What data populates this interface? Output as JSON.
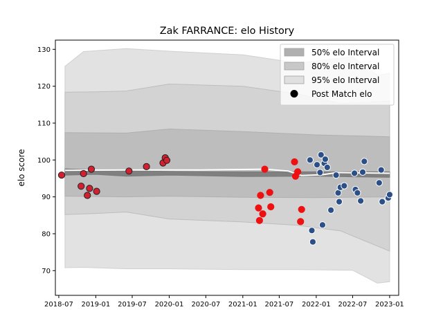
{
  "chart_data": {
    "type": "scatter",
    "title": "Zak FARRANCE: elo History",
    "xlabel": "",
    "ylabel": "elo score",
    "xlim": [
      "2018-06-14",
      "2023-02-15"
    ],
    "ylim": [
      63.3,
      132.5
    ],
    "x_ticks": [
      {
        "date": "2018-07-01",
        "label": "2018-07"
      },
      {
        "date": "2019-01-01",
        "label": "2019-01"
      },
      {
        "date": "2019-07-01",
        "label": "2019-07"
      },
      {
        "date": "2020-01-01",
        "label": "2020-01"
      },
      {
        "date": "2020-07-01",
        "label": "2020-07"
      },
      {
        "date": "2021-01-01",
        "label": "2021-01"
      },
      {
        "date": "2021-07-01",
        "label": "2021-07"
      },
      {
        "date": "2022-01-01",
        "label": "2022-01"
      },
      {
        "date": "2022-07-01",
        "label": "2022-07"
      },
      {
        "date": "2023-01-01",
        "label": "2023-01"
      }
    ],
    "y_ticks": [
      70,
      80,
      90,
      100,
      110,
      120,
      130
    ],
    "legend": {
      "placement": "top-right",
      "entries": [
        {
          "label": "50% elo Interval",
          "kind": "patch",
          "color": "#a9a9a9"
        },
        {
          "label": "80% elo Interval",
          "kind": "patch",
          "color": "#c4c4c4"
        },
        {
          "label": "95% elo Interval",
          "kind": "patch",
          "color": "#dedede"
        },
        {
          "label": "Post Match elo",
          "kind": "marker",
          "color": "#000000"
        }
      ]
    },
    "mean_line": [
      {
        "x": "2018-08-01",
        "y": 97.2
      },
      {
        "x": "2019-06-01",
        "y": 97.3
      },
      {
        "x": "2020-06-01",
        "y": 97.3
      },
      {
        "x": "2021-04-25",
        "y": 97.5
      },
      {
        "x": "2021-08-15",
        "y": 97.0
      },
      {
        "x": "2021-10-20",
        "y": 95.8
      },
      {
        "x": "2022-02-01",
        "y": 96.0
      },
      {
        "x": "2022-04-15",
        "y": 96.6
      },
      {
        "x": "2023-01-01",
        "y": 96.4
      }
    ],
    "interval_50": [
      {
        "x": "2018-08-01",
        "lo": 95.9,
        "hi": 97.6
      },
      {
        "x": "2019-01-01",
        "lo": 96.1,
        "hi": 97.3
      },
      {
        "x": "2019-06-01",
        "lo": 95.6,
        "hi": 97.1
      },
      {
        "x": "2020-01-01",
        "lo": 95.9,
        "hi": 96.9
      },
      {
        "x": "2021-01-01",
        "lo": 95.5,
        "hi": 96.8
      },
      {
        "x": "2022-01-01",
        "lo": 95.6,
        "hi": 96.8
      },
      {
        "x": "2023-01-01",
        "lo": 95.3,
        "hi": 96.8
      }
    ],
    "interval_80": [
      {
        "x": "2018-08-01",
        "lo": 90.2,
        "hi": 107.4
      },
      {
        "x": "2019-06-01",
        "lo": 90.0,
        "hi": 107.3
      },
      {
        "x": "2020-01-01",
        "lo": 90.2,
        "hi": 108.4
      },
      {
        "x": "2021-01-01",
        "lo": 89.9,
        "hi": 107.7
      },
      {
        "x": "2022-01-01",
        "lo": 89.8,
        "hi": 106.8
      },
      {
        "x": "2023-01-01",
        "lo": 90.0,
        "hi": 106.3
      }
    ],
    "interval_95": [
      {
        "x": "2018-08-01",
        "lo": 85.2,
        "hi": 118.4
      },
      {
        "x": "2019-01-01",
        "lo": 85.5,
        "hi": 118.5
      },
      {
        "x": "2019-06-01",
        "lo": 85.9,
        "hi": 118.7
      },
      {
        "x": "2020-01-01",
        "lo": 84.0,
        "hi": 120.6
      },
      {
        "x": "2021-01-01",
        "lo": 83.2,
        "hi": 120.0
      },
      {
        "x": "2021-10-01",
        "lo": 82.3,
        "hi": 117.9
      },
      {
        "x": "2022-05-01",
        "lo": 80.8,
        "hi": 115.3
      },
      {
        "x": "2023-01-01",
        "lo": 75.3,
        "hi": 116.0
      }
    ],
    "interval_99": [
      {
        "x": "2018-08-01",
        "lo": 70.8,
        "hi": 125.4
      },
      {
        "x": "2018-11-01",
        "lo": 70.9,
        "hi": 129.4
      },
      {
        "x": "2019-06-01",
        "lo": 70.5,
        "hi": 130.2
      },
      {
        "x": "2020-01-01",
        "lo": 70.5,
        "hi": 129.5
      },
      {
        "x": "2021-01-01",
        "lo": 70.3,
        "hi": 128.5
      },
      {
        "x": "2021-10-01",
        "lo": 70.3,
        "hi": 126.3
      },
      {
        "x": "2022-07-01",
        "lo": 70.1,
        "hi": 128.0
      },
      {
        "x": "2022-11-01",
        "lo": 66.6,
        "hi": 123.0
      },
      {
        "x": "2023-01-01",
        "lo": 67.0,
        "hi": 123.5
      }
    ],
    "series": [
      {
        "marker_color": "#d32030",
        "edge_color": "#222222",
        "points": [
          {
            "x": "2018-07-15",
            "y": 95.9
          },
          {
            "x": "2018-10-20",
            "y": 92.9
          },
          {
            "x": "2018-11-01",
            "y": 96.3
          },
          {
            "x": "2018-11-20",
            "y": 90.4
          },
          {
            "x": "2018-12-01",
            "y": 92.3
          },
          {
            "x": "2018-12-10",
            "y": 97.5
          },
          {
            "x": "2019-01-05",
            "y": 91.5
          },
          {
            "x": "2019-06-15",
            "y": 97.0
          },
          {
            "x": "2019-09-10",
            "y": 98.2
          },
          {
            "x": "2019-12-01",
            "y": 99.2
          },
          {
            "x": "2019-12-12",
            "y": 100.6
          },
          {
            "x": "2019-12-20",
            "y": 99.9
          }
        ]
      },
      {
        "marker_color": "#ee1111",
        "edge_color": "#ee1111",
        "points": [
          {
            "x": "2021-03-20",
            "y": 87.0
          },
          {
            "x": "2021-03-25",
            "y": 83.6
          },
          {
            "x": "2021-03-30",
            "y": 90.4
          },
          {
            "x": "2021-04-10",
            "y": 85.4
          },
          {
            "x": "2021-04-20",
            "y": 97.5
          },
          {
            "x": "2021-05-15",
            "y": 91.2
          },
          {
            "x": "2021-05-20",
            "y": 87.3
          },
          {
            "x": "2021-09-15",
            "y": 99.5
          },
          {
            "x": "2021-09-20",
            "y": 95.6
          },
          {
            "x": "2021-10-01",
            "y": 96.8
          },
          {
            "x": "2021-10-15",
            "y": 83.3
          },
          {
            "x": "2021-10-20",
            "y": 86.6
          }
        ]
      },
      {
        "marker_color": "#2b4f86",
        "edge_color": "#ffffff",
        "points": [
          {
            "x": "2021-12-01",
            "y": 100.0
          },
          {
            "x": "2021-12-10",
            "y": 80.9
          },
          {
            "x": "2021-12-15",
            "y": 77.8
          },
          {
            "x": "2022-01-05",
            "y": 98.7
          },
          {
            "x": "2022-01-20",
            "y": 96.6
          },
          {
            "x": "2022-01-25",
            "y": 101.4
          },
          {
            "x": "2022-02-01",
            "y": 82.4
          },
          {
            "x": "2022-02-10",
            "y": 99.1
          },
          {
            "x": "2022-02-15",
            "y": 100.2
          },
          {
            "x": "2022-02-25",
            "y": 98.0
          },
          {
            "x": "2022-03-15",
            "y": 86.4
          },
          {
            "x": "2022-04-10",
            "y": 95.9
          },
          {
            "x": "2022-04-20",
            "y": 91.1
          },
          {
            "x": "2022-04-25",
            "y": 88.7
          },
          {
            "x": "2022-05-01",
            "y": 92.6
          },
          {
            "x": "2022-05-20",
            "y": 93.0
          },
          {
            "x": "2022-07-10",
            "y": 96.4
          },
          {
            "x": "2022-07-15",
            "y": 92.0
          },
          {
            "x": "2022-07-25",
            "y": 91.1
          },
          {
            "x": "2022-08-10",
            "y": 88.9
          },
          {
            "x": "2022-08-20",
            "y": 96.7
          },
          {
            "x": "2022-08-28",
            "y": 99.6
          },
          {
            "x": "2022-11-10",
            "y": 93.8
          },
          {
            "x": "2022-11-20",
            "y": 97.3
          },
          {
            "x": "2022-11-25",
            "y": 88.7
          },
          {
            "x": "2022-12-25",
            "y": 89.7
          },
          {
            "x": "2023-01-01",
            "y": 90.6
          }
        ]
      }
    ],
    "colors": {
      "band_99": "#e2e2e2",
      "band_95": "#d2d2d2",
      "band_80": "#bcbcbc",
      "band_50": "#808080",
      "mean_line": "#ffffff"
    }
  }
}
